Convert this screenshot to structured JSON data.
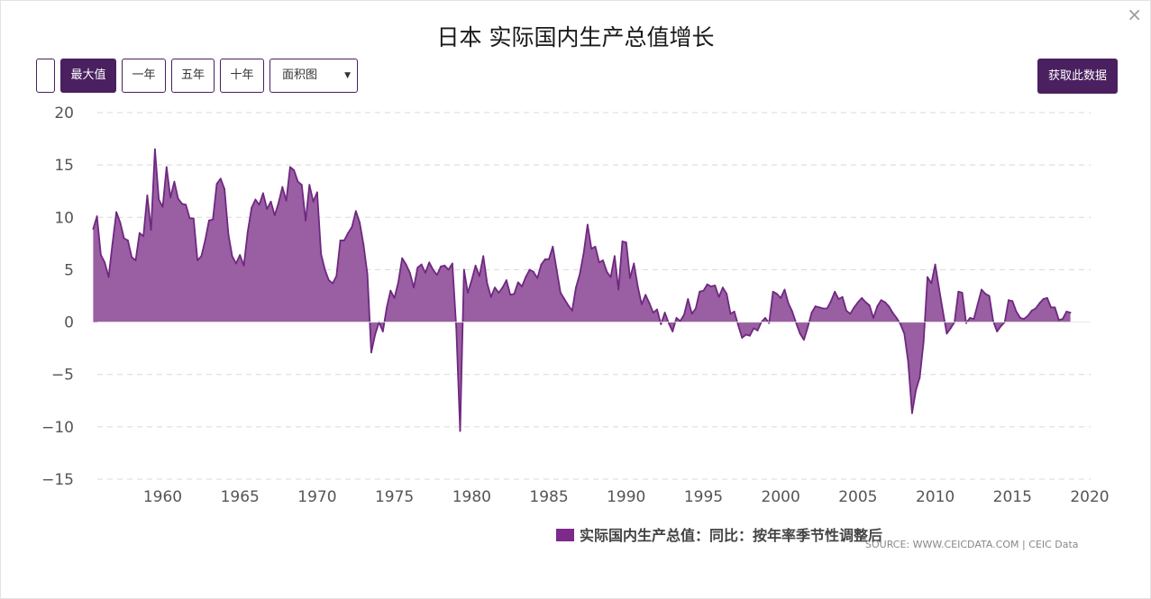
{
  "dialog": {
    "close_label": "×"
  },
  "toolbar": {
    "range_buttons": [
      "最大值",
      "一年",
      "五年",
      "十年"
    ],
    "chart_type_select": "面积图",
    "fetch_button": "获取此数据"
  },
  "colors": {
    "accent": "#4a2060",
    "series_fill": "#9a5ea2",
    "series_line": "#6e2880"
  },
  "chart_data": {
    "type": "area",
    "title": "日本 实际国内生产总值增长",
    "xlabel": "",
    "ylabel": "",
    "xlim": [
      1955,
      2020
    ],
    "ylim": [
      -15,
      20
    ],
    "x_ticks": [
      "1960",
      "1965",
      "1970",
      "1975",
      "1980",
      "1985",
      "1990",
      "1995",
      "2000",
      "2005",
      "2010",
      "2015",
      "2020"
    ],
    "y_ticks": [
      "20",
      "15",
      "10",
      "5",
      "0",
      "−5",
      "−10",
      "−15"
    ],
    "grid": true,
    "legend_position": "bottom",
    "series": [
      {
        "name": "实际国内生产总值：同比：按年率季节性调整后",
        "points": [
          [
            1955.5,
            8.9
          ],
          [
            1955.75,
            10.1
          ],
          [
            1956.0,
            6.4
          ],
          [
            1956.25,
            5.7
          ],
          [
            1956.5,
            4.3
          ],
          [
            1956.75,
            7.5
          ],
          [
            1957.0,
            10.5
          ],
          [
            1957.25,
            9.5
          ],
          [
            1957.5,
            8.0
          ],
          [
            1957.75,
            7.8
          ],
          [
            1958.0,
            6.2
          ],
          [
            1958.25,
            5.9
          ],
          [
            1958.5,
            8.5
          ],
          [
            1958.75,
            8.2
          ],
          [
            1959.0,
            12.1
          ],
          [
            1959.25,
            8.8
          ],
          [
            1959.5,
            16.5
          ],
          [
            1959.75,
            11.7
          ],
          [
            1960.0,
            11.0
          ],
          [
            1960.25,
            14.8
          ],
          [
            1960.5,
            11.9
          ],
          [
            1960.75,
            13.4
          ],
          [
            1961.0,
            11.8
          ],
          [
            1961.25,
            11.3
          ],
          [
            1961.5,
            11.2
          ],
          [
            1961.75,
            9.9
          ],
          [
            1962.0,
            9.9
          ],
          [
            1962.25,
            5.9
          ],
          [
            1962.5,
            6.3
          ],
          [
            1962.75,
            7.8
          ],
          [
            1963.0,
            9.7
          ],
          [
            1963.25,
            9.8
          ],
          [
            1963.5,
            13.2
          ],
          [
            1963.75,
            13.7
          ],
          [
            1964.0,
            12.7
          ],
          [
            1964.25,
            8.4
          ],
          [
            1964.5,
            6.3
          ],
          [
            1964.75,
            5.6
          ],
          [
            1965.0,
            6.4
          ],
          [
            1965.25,
            5.4
          ],
          [
            1965.5,
            8.6
          ],
          [
            1965.75,
            10.9
          ],
          [
            1966.0,
            11.7
          ],
          [
            1966.25,
            11.2
          ],
          [
            1966.5,
            12.3
          ],
          [
            1966.75,
            10.8
          ],
          [
            1967.0,
            11.5
          ],
          [
            1967.25,
            10.2
          ],
          [
            1967.5,
            11.4
          ],
          [
            1967.75,
            12.9
          ],
          [
            1968.0,
            11.6
          ],
          [
            1968.25,
            14.8
          ],
          [
            1968.5,
            14.5
          ],
          [
            1968.75,
            13.4
          ],
          [
            1969.0,
            13.1
          ],
          [
            1969.25,
            9.7
          ],
          [
            1969.5,
            13.1
          ],
          [
            1969.75,
            11.5
          ],
          [
            1970.0,
            12.4
          ],
          [
            1970.25,
            6.5
          ],
          [
            1970.5,
            5.0
          ],
          [
            1970.75,
            4.0
          ],
          [
            1971.0,
            3.7
          ],
          [
            1971.25,
            4.4
          ],
          [
            1971.5,
            7.8
          ],
          [
            1971.75,
            7.8
          ],
          [
            1972.0,
            8.5
          ],
          [
            1972.25,
            9.1
          ],
          [
            1972.5,
            10.6
          ],
          [
            1972.75,
            9.5
          ],
          [
            1973.0,
            7.4
          ],
          [
            1973.25,
            4.6
          ],
          [
            1973.5,
            -2.9
          ],
          [
            1973.75,
            -1.2
          ],
          [
            1974.0,
            0.0
          ],
          [
            1974.25,
            -0.9
          ],
          [
            1974.5,
            1.4
          ],
          [
            1974.75,
            3.0
          ],
          [
            1975.0,
            2.3
          ],
          [
            1975.25,
            3.8
          ],
          [
            1975.5,
            6.1
          ],
          [
            1975.75,
            5.5
          ],
          [
            1976.0,
            4.7
          ],
          [
            1976.25,
            3.3
          ],
          [
            1976.5,
            5.2
          ],
          [
            1976.75,
            5.5
          ],
          [
            1977.0,
            4.7
          ],
          [
            1977.25,
            5.7
          ],
          [
            1977.5,
            5.0
          ],
          [
            1977.75,
            4.5
          ],
          [
            1978.0,
            5.3
          ],
          [
            1978.25,
            5.4
          ],
          [
            1978.5,
            5.0
          ],
          [
            1978.75,
            5.6
          ],
          [
            1979.0,
            -0.5
          ],
          [
            1979.25,
            -10.4
          ],
          [
            1979.5,
            5.0
          ],
          [
            1979.75,
            2.8
          ],
          [
            1980.0,
            4.0
          ],
          [
            1980.25,
            5.4
          ],
          [
            1980.5,
            4.4
          ],
          [
            1980.75,
            6.3
          ],
          [
            1981.0,
            3.7
          ],
          [
            1981.25,
            2.4
          ],
          [
            1981.5,
            3.3
          ],
          [
            1981.75,
            2.8
          ],
          [
            1982.0,
            3.3
          ],
          [
            1982.25,
            4.0
          ],
          [
            1982.5,
            2.6
          ],
          [
            1982.75,
            2.7
          ],
          [
            1983.0,
            3.8
          ],
          [
            1983.25,
            3.4
          ],
          [
            1983.5,
            4.3
          ],
          [
            1983.75,
            5.0
          ],
          [
            1984.0,
            4.8
          ],
          [
            1984.25,
            4.2
          ],
          [
            1984.5,
            5.5
          ],
          [
            1984.75,
            6.0
          ],
          [
            1985.0,
            6.0
          ],
          [
            1985.25,
            7.2
          ],
          [
            1985.5,
            5.0
          ],
          [
            1985.75,
            2.8
          ],
          [
            1986.0,
            2.2
          ],
          [
            1986.25,
            1.6
          ],
          [
            1986.5,
            1.1
          ],
          [
            1986.75,
            3.3
          ],
          [
            1987.0,
            4.6
          ],
          [
            1987.25,
            6.6
          ],
          [
            1987.5,
            9.3
          ],
          [
            1987.75,
            7.0
          ],
          [
            1988.0,
            7.2
          ],
          [
            1988.25,
            5.7
          ],
          [
            1988.5,
            5.9
          ],
          [
            1988.75,
            4.8
          ],
          [
            1989.0,
            4.3
          ],
          [
            1989.25,
            6.3
          ],
          [
            1989.5,
            3.1
          ],
          [
            1989.75,
            7.7
          ],
          [
            1990.0,
            7.6
          ],
          [
            1990.25,
            4.2
          ],
          [
            1990.5,
            5.6
          ],
          [
            1990.75,
            3.4
          ],
          [
            1991.0,
            1.7
          ],
          [
            1991.25,
            2.6
          ],
          [
            1991.5,
            1.8
          ],
          [
            1991.75,
            0.9
          ],
          [
            1992.0,
            1.2
          ],
          [
            1992.25,
            -0.2
          ],
          [
            1992.5,
            0.9
          ],
          [
            1992.75,
            -0.1
          ],
          [
            1993.0,
            -0.9
          ],
          [
            1993.25,
            0.4
          ],
          [
            1993.5,
            0.1
          ],
          [
            1993.75,
            0.7
          ],
          [
            1994.0,
            2.2
          ],
          [
            1994.25,
            0.8
          ],
          [
            1994.5,
            1.3
          ],
          [
            1994.75,
            2.9
          ],
          [
            1995.0,
            3.0
          ],
          [
            1995.25,
            3.6
          ],
          [
            1995.5,
            3.4
          ],
          [
            1995.75,
            3.5
          ],
          [
            1996.0,
            2.4
          ],
          [
            1996.25,
            3.3
          ],
          [
            1996.5,
            2.7
          ],
          [
            1996.75,
            0.8
          ],
          [
            1997.0,
            1.0
          ],
          [
            1997.25,
            -0.3
          ],
          [
            1997.5,
            -1.5
          ],
          [
            1997.75,
            -1.2
          ],
          [
            1998.0,
            -1.3
          ],
          [
            1998.25,
            -0.6
          ],
          [
            1998.5,
            -0.8
          ],
          [
            1998.75,
            0.0
          ],
          [
            1999.0,
            0.4
          ],
          [
            1999.25,
            -0.1
          ],
          [
            1999.5,
            2.9
          ],
          [
            1999.75,
            2.7
          ],
          [
            2000.0,
            2.3
          ],
          [
            2000.25,
            3.1
          ],
          [
            2000.5,
            1.8
          ],
          [
            2000.75,
            1.0
          ],
          [
            2001.0,
            -0.1
          ],
          [
            2001.25,
            -1.1
          ],
          [
            2001.5,
            -1.7
          ],
          [
            2001.75,
            -0.5
          ],
          [
            2002.0,
            0.9
          ],
          [
            2002.25,
            1.5
          ],
          [
            2002.5,
            1.4
          ],
          [
            2002.75,
            1.3
          ],
          [
            2003.0,
            1.3
          ],
          [
            2003.25,
            2.0
          ],
          [
            2003.5,
            2.9
          ],
          [
            2003.75,
            2.2
          ],
          [
            2004.0,
            2.4
          ],
          [
            2004.25,
            1.1
          ],
          [
            2004.5,
            0.8
          ],
          [
            2004.75,
            1.4
          ],
          [
            2005.0,
            1.9
          ],
          [
            2005.25,
            2.3
          ],
          [
            2005.5,
            1.9
          ],
          [
            2005.75,
            1.6
          ],
          [
            2006.0,
            0.4
          ],
          [
            2006.25,
            1.5
          ],
          [
            2006.5,
            2.1
          ],
          [
            2006.75,
            1.9
          ],
          [
            2007.0,
            1.5
          ],
          [
            2007.25,
            0.9
          ],
          [
            2007.5,
            0.4
          ],
          [
            2007.75,
            -0.2
          ],
          [
            2008.0,
            -1.1
          ],
          [
            2008.25,
            -3.8
          ],
          [
            2008.5,
            -8.7
          ],
          [
            2008.75,
            -6.5
          ],
          [
            2009.0,
            -5.3
          ],
          [
            2009.25,
            -1.9
          ],
          [
            2009.5,
            4.3
          ],
          [
            2009.75,
            3.7
          ],
          [
            2010.0,
            5.5
          ],
          [
            2010.25,
            3.2
          ],
          [
            2010.5,
            1.0
          ],
          [
            2010.75,
            -1.1
          ],
          [
            2011.0,
            -0.6
          ],
          [
            2011.25,
            0.0
          ],
          [
            2011.5,
            2.9
          ],
          [
            2011.75,
            2.8
          ],
          [
            2012.0,
            -0.1
          ],
          [
            2012.25,
            0.4
          ],
          [
            2012.5,
            0.3
          ],
          [
            2012.75,
            1.7
          ],
          [
            2013.0,
            3.1
          ],
          [
            2013.25,
            2.7
          ],
          [
            2013.5,
            2.5
          ],
          [
            2013.75,
            0.1
          ],
          [
            2014.0,
            -0.9
          ],
          [
            2014.25,
            -0.4
          ],
          [
            2014.5,
            0.0
          ],
          [
            2014.75,
            2.1
          ],
          [
            2015.0,
            2.0
          ],
          [
            2015.25,
            1.0
          ],
          [
            2015.5,
            0.4
          ],
          [
            2015.75,
            0.3
          ],
          [
            2016.0,
            0.6
          ],
          [
            2016.25,
            1.1
          ],
          [
            2016.5,
            1.3
          ],
          [
            2016.75,
            1.8
          ],
          [
            2017.0,
            2.2
          ],
          [
            2017.25,
            2.3
          ],
          [
            2017.5,
            1.4
          ],
          [
            2017.75,
            1.4
          ],
          [
            2018.0,
            0.2
          ],
          [
            2018.25,
            0.3
          ],
          [
            2018.5,
            1.0
          ],
          [
            2018.75,
            0.9
          ]
        ]
      }
    ]
  },
  "source": {
    "text": "SOURCE: WWW.CEICDATA.COM",
    "brand": "CEIC Data",
    "separator": "|"
  }
}
